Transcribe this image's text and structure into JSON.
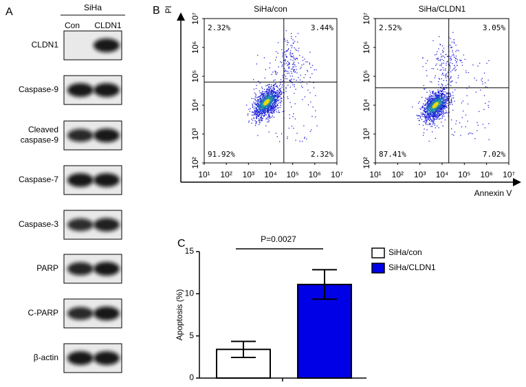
{
  "panel_a": {
    "label": "A",
    "header": "SiHa",
    "lanes": [
      "Con",
      "CLDN1"
    ],
    "rows": [
      [
        "CLDN1"
      ],
      [
        "Caspase-9"
      ],
      [
        "Cleaved",
        "caspase-9"
      ],
      [
        "Caspase-7"
      ],
      [
        "Caspase-3"
      ],
      [
        "PARP"
      ],
      [
        "C-PARP"
      ],
      [
        "β-actin"
      ]
    ]
  },
  "panel_b": {
    "label": "B",
    "xlabel": "Annexin V",
    "ylabel": "PI"
  },
  "panel_c": {
    "label": "C"
  },
  "chart_data": [
    {
      "type": "scatter",
      "title": "SiHa/con",
      "log_scale": true,
      "xlim": [
        10,
        10000000
      ],
      "ylim": [
        100,
        10000000
      ],
      "xticks": [
        {
          "value": 10,
          "label": "10¹"
        },
        {
          "value": 100,
          "label": "10²"
        },
        {
          "value": 1000,
          "label": "10³"
        },
        {
          "value": 10000,
          "label": "10⁴"
        },
        {
          "value": 100000,
          "label": "10⁵"
        },
        {
          "value": 1000000,
          "label": "10⁶"
        },
        {
          "value": 10000000,
          "label": "10⁷"
        }
      ],
      "yticks": [
        {
          "value": 100,
          "label": "10²"
        },
        {
          "value": 1000,
          "label": "10³"
        },
        {
          "value": 10000,
          "label": "10⁴"
        },
        {
          "value": 100000,
          "label": "10⁵"
        },
        {
          "value": 1000000,
          "label": "10⁶"
        },
        {
          "value": 10000000,
          "label": "10⁷"
        }
      ],
      "quadrant_labels": [
        "2.32%",
        "3.44%",
        "91.92%",
        "2.32%"
      ]
    },
    {
      "type": "scatter",
      "title": "SiHa/CLDN1",
      "log_scale": true,
      "xlim": [
        10,
        10000000
      ],
      "ylim": [
        100,
        10000000
      ],
      "xticks": [
        {
          "value": 10,
          "label": "10¹"
        },
        {
          "value": 100,
          "label": "10²"
        },
        {
          "value": 1000,
          "label": "10³"
        },
        {
          "value": 10000,
          "label": "10⁴"
        },
        {
          "value": 100000,
          "label": "10⁵"
        },
        {
          "value": 1000000,
          "label": "10⁶"
        },
        {
          "value": 10000000,
          "label": "10⁷"
        }
      ],
      "yticks": [
        {
          "value": 100,
          "label": "10²"
        },
        {
          "value": 1000,
          "label": "10³"
        },
        {
          "value": 10000,
          "label": "10⁴"
        },
        {
          "value": 100000,
          "label": "10⁵"
        },
        {
          "value": 1000000,
          "label": "10⁶"
        },
        {
          "value": 10000000,
          "label": "10⁷"
        }
      ],
      "quadrant_labels": [
        "2.52%",
        "3.05%",
        "87.41%",
        "7.02%"
      ]
    },
    {
      "type": "bar",
      "ylabel": "Apoptosis (%)",
      "annotation": "P=0.0027",
      "ylim": [
        0,
        15
      ],
      "yticks": [
        0,
        5,
        10,
        15
      ],
      "series": [
        {
          "name": "SiHa/con",
          "color": "#ffffff",
          "values": [
            3.4
          ],
          "errors": [
            0.95
          ]
        },
        {
          "name": "SiHa/CLDN1",
          "color": "#0000e6",
          "values": [
            11.1
          ],
          "errors": [
            1.75
          ]
        }
      ]
    }
  ]
}
